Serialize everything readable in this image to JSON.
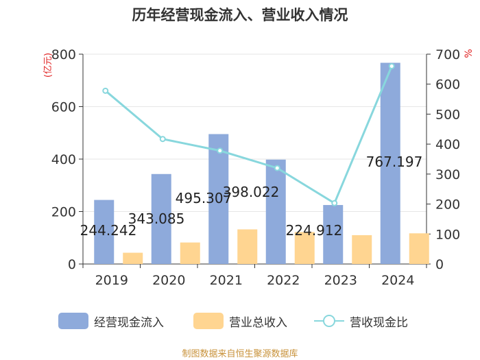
{
  "title": "历年经营现金流入、营业收入情况",
  "source": "制图数据来自恒生聚源数据库",
  "colors": {
    "cash_inflow": "#8eaadb",
    "revenue": "#ffd591",
    "ratio": "#88d7dd"
  },
  "chart_data": {
    "type": "bar",
    "categories": [
      "2019",
      "2020",
      "2021",
      "2022",
      "2023",
      "2024"
    ],
    "y_left": {
      "label": "(亿元)",
      "ylim": [
        0,
        800
      ],
      "ticks": [
        "0",
        "200",
        "400",
        "600",
        "800"
      ]
    },
    "y_right": {
      "label": "%",
      "ylim": [
        0,
        700
      ],
      "ticks": [
        "0",
        "100",
        "200",
        "300",
        "400",
        "500",
        "600",
        "700"
      ]
    },
    "series": [
      {
        "name": "经营现金流入",
        "type": "bar",
        "axis": "left",
        "values": [
          244.242,
          343.085,
          495.307,
          398.022,
          224.912,
          767.197
        ],
        "labels": [
          "244.242",
          "343.085",
          "495.307",
          "398.022",
          "224.912",
          "767.197"
        ]
      },
      {
        "name": "营业总收入",
        "type": "bar",
        "axis": "left",
        "values": [
          43,
          82,
          132,
          122,
          110,
          117
        ]
      },
      {
        "name": "营收现金比",
        "type": "line",
        "axis": "right",
        "values": [
          578,
          417,
          378,
          320,
          203,
          660
        ]
      }
    ],
    "legend": "bottom",
    "grid": true
  }
}
